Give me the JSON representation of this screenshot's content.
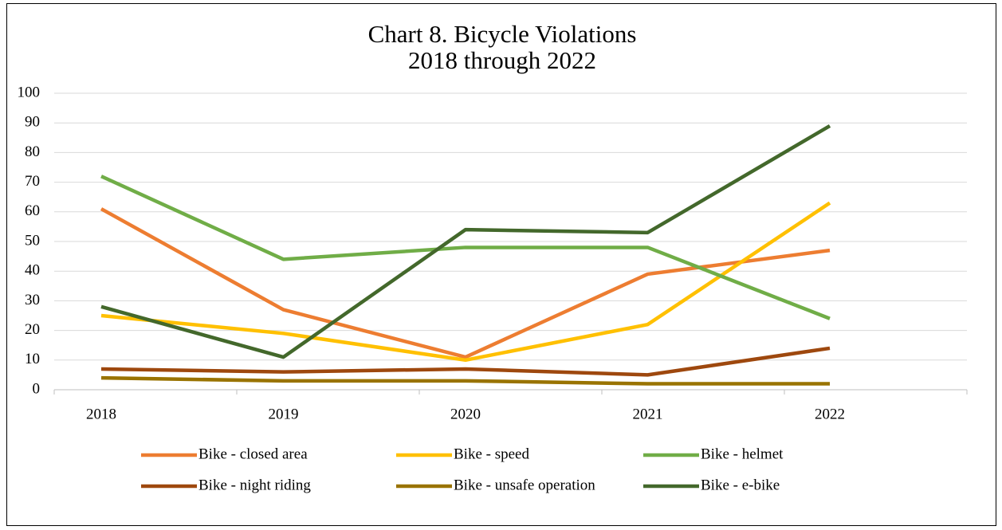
{
  "chart_data": {
    "type": "line",
    "title": "Chart 8. Bicycle Violations",
    "subtitle": "2018 through 2022",
    "categories": [
      "2018",
      "2019",
      "2020",
      "2021",
      "2022"
    ],
    "series": [
      {
        "name": "Bike - closed area",
        "color": "#ed7d31",
        "values": [
          61,
          27,
          11,
          39,
          47
        ]
      },
      {
        "name": "Bike - speed",
        "color": "#ffc000",
        "values": [
          25,
          19,
          10,
          22,
          63
        ]
      },
      {
        "name": "Bike - helmet",
        "color": "#70ad47",
        "values": [
          72,
          44,
          48,
          48,
          24
        ]
      },
      {
        "name": "Bike - night riding",
        "color": "#9e480e",
        "values": [
          7,
          6,
          7,
          5,
          14
        ]
      },
      {
        "name": "Bike - unsafe operation",
        "color": "#997300",
        "values": [
          4,
          3,
          3,
          2,
          2
        ]
      },
      {
        "name": "Bike - e-bike",
        "color": "#43682b",
        "values": [
          28,
          11,
          54,
          53,
          89
        ]
      }
    ],
    "ylim": [
      0,
      100
    ],
    "yticks": [
      0,
      10,
      20,
      30,
      40,
      50,
      60,
      70,
      80,
      90,
      100
    ],
    "grid": true,
    "legend": "bottom"
  }
}
